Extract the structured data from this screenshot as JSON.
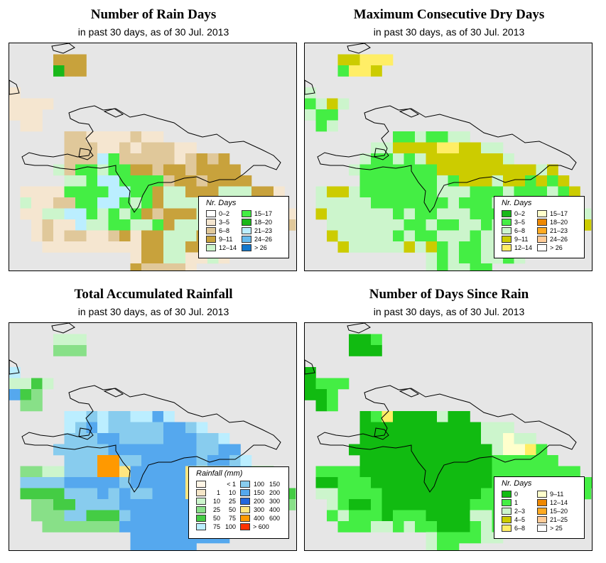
{
  "panels": [
    {
      "key": "rain_days",
      "title": "Number of Rain Days",
      "subtitle": "in past 30 days, as of  30 Jul. 2013",
      "legend_title": "Nr. Days",
      "legend_layout": "two-column",
      "legend": [
        {
          "label": "0–2",
          "color": "#ffffff"
        },
        {
          "label": "3–5",
          "color": "#f5e6d0"
        },
        {
          "label": "6–8",
          "color": "#e0c89a"
        },
        {
          "label": "9–11",
          "color": "#c8a23c"
        },
        {
          "label": "12–14",
          "color": "#ccf5cc"
        },
        {
          "label": "15–17",
          "color": "#44ee44"
        },
        {
          "label": "18–20",
          "color": "#1ab81a"
        },
        {
          "label": "21–23",
          "color": "#bbeeff"
        },
        {
          "label": "24–26",
          "color": "#66bbee"
        },
        {
          "label": "> 26",
          "color": "#1177cc"
        }
      ],
      "grid": [
        "..........................",
        "....ddd...................",
        "....gdd...................",
        "..........................",
        "b.........................",
        "bbbb......................",
        "bbb.......................",
        ".bb.......................",
        ".....ccbbbbcbb............",
        ".....cccbbcbcccbb.........",
        ".....cccEFcccccbcdcd......",
        "....ecFFeFFddcddcdddd.....",
        ".....eeFhhFFFFcddcdddd....",
        ".bbbbFFFFhhFFdeedddeeeddb.",
        ".ebbccFFhhFeFdeeeeeeedebb.",
        ".bbeehhFeFeFdcdddedddddedb",
        "..bcbbheeFFeeFdeeedeecddcc",
        "..bcbccbbcdbddeeedeeeeecc.",
        "...bbbbbbbbbddeeddedbd....",
        "...........bddeebbeb......",
        "...........dccccb.........",
        "...........ddcc..........."
      ]
    },
    {
      "key": "dry_days",
      "title": "Maximum Consecutive Dry Days",
      "subtitle": "in past 30 days, as of  30 Jul. 2013",
      "legend_title": "Nr. Days",
      "legend_layout": "two-column",
      "legend": [
        {
          "label": "0–2",
          "color": "#1ab81a"
        },
        {
          "label": "3–5",
          "color": "#44ee44"
        },
        {
          "label": "6–8",
          "color": "#ccf5cc"
        },
        {
          "label": "9–11",
          "color": "#cccc00"
        },
        {
          "label": "12–14",
          "color": "#ffee66"
        },
        {
          "label": "15–17",
          "color": "#ffffcc"
        },
        {
          "label": "18–20",
          "color": "#ee8800"
        },
        {
          "label": "21–23",
          "color": "#ffaa22"
        },
        {
          "label": "24–26",
          "color": "#ffcc99"
        },
        {
          "label": "> 26",
          "color": "#ffffff"
        }
      ],
      "grid": [
        "..........................",
        "...ddeee..................",
        "...beed...................",
        "..........................",
        "c.........................",
        "bcdc......................",
        "cbb.......................",
        ".bc.......................",
        "........bbcbbcc...........",
        "......ccddddeeddcc........",
        ".....cbbcbcdddddddc.......",
        "....cbbbbbbbdddddddddcd...",
        ".....bbbbbbbcbdddcddbdbd..",
        ".cddcbbbbbbbcccbbbcbbbcbd.",
        ".cccccbbbbbbbcbbbccbccbcc.",
        ".dccccccbcbbcccbbbbcbbbcbc",
        "..cccccccbbcbbccbcbcbcbcbd",
        "..dcccccbcbbcccbcccbcccdc.",
        "...dcccccdcdbcbbcccccb....",
        "...........cbcbbccbc......",
        "...........cbccbb.........",
        "...........ccdc..........."
      ]
    },
    {
      "key": "rainfall",
      "title": "Total Accumulated Rainfall",
      "subtitle": "in past 30 days, as of  30 Jul. 2013",
      "legend_title": "Rainfall (mm)",
      "legend_layout": "range-two-column",
      "legend": [
        {
          "lo": "",
          "hi": "< 1",
          "color": "#fff5e6"
        },
        {
          "lo": "1",
          "hi": "10",
          "color": "#f5e6c8"
        },
        {
          "lo": "10",
          "hi": "25",
          "color": "#ccf5cc"
        },
        {
          "lo": "25",
          "hi": "50",
          "color": "#88e088"
        },
        {
          "lo": "50",
          "hi": "75",
          "color": "#44cc44"
        },
        {
          "lo": "75",
          "hi": "100",
          "color": "#bbeeff"
        },
        {
          "lo": "100",
          "hi": "150",
          "color": "#88ccee"
        },
        {
          "lo": "150",
          "hi": "200",
          "color": "#55a8ee"
        },
        {
          "lo": "200",
          "hi": "300",
          "color": "#2266dd"
        },
        {
          "lo": "300",
          "hi": "400",
          "color": "#ffe680"
        },
        {
          "lo": "400",
          "hi": "600",
          "color": "#ff9900"
        },
        {
          "lo": "> 600",
          "hi": "",
          "color": "#ff3300"
        }
      ],
      "grid": [
        "..........................",
        "....ccc...................",
        "....ddd...................",
        "..........................",
        "f.........................",
        "ccec......................",
        "hed.......................",
        ".dd.......................",
        ".....ffgfggffhf...........",
        ".....fghfggggghhgf........",
        ".....ggghhgggghhhggf......",
        "....ggggghhhhhhhhgghh.....",
        ".....gggkkgghhhhhghhgf....",
        ".ddccgggkkjhhhhhjjjjhhdd..",
        ".gggghhhhhghhhhhjjjjhhhdd.",
        ".eeeeggghghgghhhjjjjhghdde",
        "..ddeegggghhhhhhhhhhhhdddd",
        "..dddggeeeghhhhhhhhhhgdd..",
        "...dddddddhhhhhhhhhhhd....",
        "...........hhhhhhhhh......",
        "...........hhhhhh.........",
        "...........hhhh..........."
      ]
    },
    {
      "key": "since_rain",
      "title": "Number of Days Since Rain",
      "subtitle": "in past 30 days, as of  30 Jul. 2013",
      "legend_title": "Nr. Days",
      "legend_layout": "two-column",
      "legend": [
        {
          "label": "0",
          "color": "#11bb11"
        },
        {
          "label": "1",
          "color": "#44ee44"
        },
        {
          "label": "2–3",
          "color": "#ccf5cc"
        },
        {
          "label": "4–5",
          "color": "#cccc00"
        },
        {
          "label": "6–8",
          "color": "#ffee66"
        },
        {
          "label": "9–11",
          "color": "#ffffcc"
        },
        {
          "label": "12–14",
          "color": "#ee8800"
        },
        {
          "label": "15–20",
          "color": "#ffaa22"
        },
        {
          "label": "21–25",
          "color": "#ffcc99"
        },
        {
          "label": "> 25",
          "color": "#ffffff"
        }
      ],
      "grid": [
        "..........................",
        "....aab...................",
        "....aaa...................",
        "..........................",
        "a.........................",
        "abbb......................",
        "aab.......................",
        ".ab.......................",
        ".....abeaaaacaa...........",
        ".....aaaaaaaaaaaccc.......",
        ".....aaaaaaaaaaaccfcc.....",
        "....aaaaaaaaaaaaacffeb....",
        ".....aaaaaaaaaaaabbbbbb...",
        ".bbbbaaaaaaaaaaaabbbbbbbb.",
        ".aabbbaaaaaaaaaaabbbbbbbbbb",
        ".ccbbbbaaaaaaaaabbbbbbbbbb",
        "..cbaabaaaaaaaabbbbbbbbbb.",
        "..bcbbbabbbaaaaccbbbbbbb..",
        "...bbbccbcbbaaabcbbbb.....",
        "...........cbbbbcc........",
        "...........cbb............",
        "...........bbc............"
      ]
    }
  ]
}
